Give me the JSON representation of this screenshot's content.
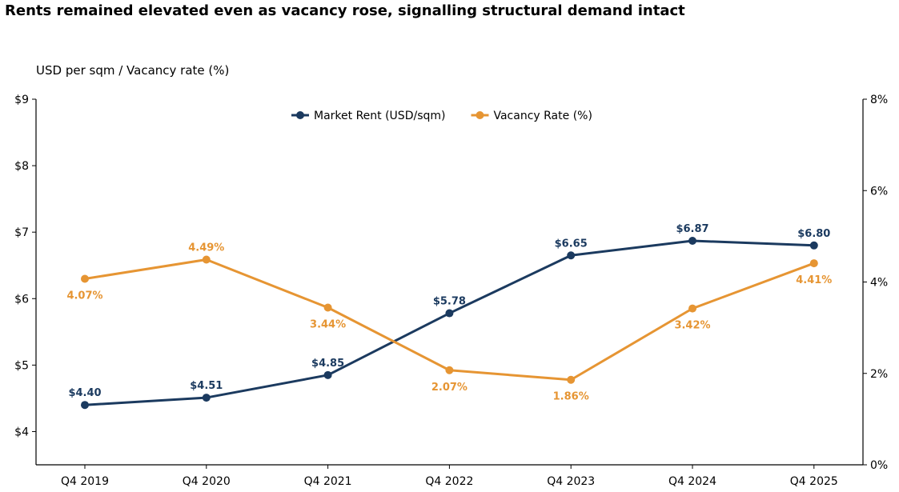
{
  "chart_data": {
    "type": "line",
    "title": "Rents remained elevated even as vacancy rose, signalling structural demand intact",
    "ylabel": "USD per sqm / Vacancy rate (%)",
    "categories": [
      "Q4 2019",
      "Q4 2020",
      "Q4 2021",
      "Q4 2022",
      "Q4 2023",
      "Q4 2024",
      "Q4 2025"
    ],
    "y_left": {
      "ylim": [
        3.5,
        9
      ],
      "ticks": [
        4,
        5,
        6,
        7,
        8,
        9
      ],
      "tick_labels": [
        "$4",
        "$5",
        "$6",
        "$7",
        "$8",
        "$9"
      ]
    },
    "y_right": {
      "ylim": [
        0,
        8
      ],
      "ticks": [
        0,
        2,
        4,
        6,
        8
      ],
      "tick_labels": [
        "0%",
        "2%",
        "4%",
        "6%",
        "8%"
      ]
    },
    "grid": false,
    "legend_position": "top-center",
    "series": [
      {
        "name": "Market Rent (USD/sqm)",
        "axis": "left",
        "color": "#1b3a5f",
        "values": [
          4.4,
          4.51,
          4.85,
          5.78,
          6.65,
          6.87,
          6.8
        ],
        "labels": [
          "$4.40",
          "$4.51",
          "$4.85",
          "$5.78",
          "$6.65",
          "$6.87",
          "$6.80"
        ],
        "label_position": [
          "above",
          "above",
          "above",
          "above",
          "above",
          "above",
          "above"
        ]
      },
      {
        "name": "Vacancy Rate (%)",
        "axis": "right",
        "color": "#e69533",
        "values": [
          4.07,
          4.49,
          3.44,
          2.07,
          1.86,
          3.42,
          4.41
        ],
        "labels": [
          "4.07%",
          "4.49%",
          "3.44%",
          "2.07%",
          "1.86%",
          "3.42%",
          "4.41%"
        ],
        "label_position": [
          "below",
          "above",
          "below",
          "below",
          "below",
          "below",
          "below"
        ]
      }
    ]
  }
}
